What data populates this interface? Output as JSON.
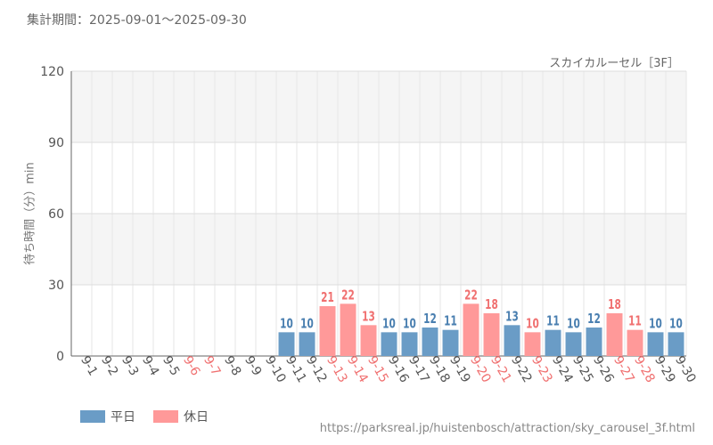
{
  "period_text": "集計期間：2025-09-01～2025-09-30",
  "subtitle": "スカイカルーセル［3F］",
  "source_url": "https://parksreal.jp/huistenbosch/attraction/sky_carousel_3f.html",
  "colors": {
    "weekday": "#6a9cc6",
    "holiday": "#ff9999",
    "weekday_label": "#4a7fb0",
    "holiday_label": "#f07070"
  },
  "legend": [
    {
      "label": "平日",
      "kind": "weekday"
    },
    {
      "label": "休日",
      "kind": "holiday"
    }
  ],
  "chart_data": {
    "type": "bar",
    "title": "",
    "xlabel": "",
    "ylabel": "待ち時間（分）min",
    "ylim": [
      0,
      120
    ],
    "yticks": [
      0,
      30,
      60,
      90,
      120
    ],
    "grid": true,
    "legend_position": "bottom-left",
    "categories": [
      "9-1",
      "9-2",
      "9-3",
      "9-4",
      "9-5",
      "9-6",
      "9-7",
      "9-8",
      "9-9",
      "9-10",
      "9-11",
      "9-12",
      "9-13",
      "9-14",
      "9-15",
      "9-16",
      "9-17",
      "9-18",
      "9-19",
      "9-20",
      "9-21",
      "9-22",
      "9-23",
      "9-24",
      "9-25",
      "9-26",
      "9-27",
      "9-28",
      "9-29",
      "9-30"
    ],
    "values": [
      null,
      null,
      null,
      null,
      null,
      null,
      null,
      null,
      null,
      null,
      10,
      10,
      21,
      22,
      13,
      10,
      10,
      12,
      11,
      22,
      18,
      13,
      10,
      11,
      10,
      12,
      18,
      11,
      10,
      10
    ],
    "day_type": [
      "weekday",
      "weekday",
      "weekday",
      "weekday",
      "weekday",
      "holiday",
      "holiday",
      "weekday",
      "weekday",
      "weekday",
      "weekday",
      "weekday",
      "holiday",
      "holiday",
      "holiday",
      "weekday",
      "weekday",
      "weekday",
      "weekday",
      "holiday",
      "holiday",
      "weekday",
      "holiday",
      "weekday",
      "weekday",
      "weekday",
      "holiday",
      "holiday",
      "weekday",
      "weekday"
    ]
  }
}
